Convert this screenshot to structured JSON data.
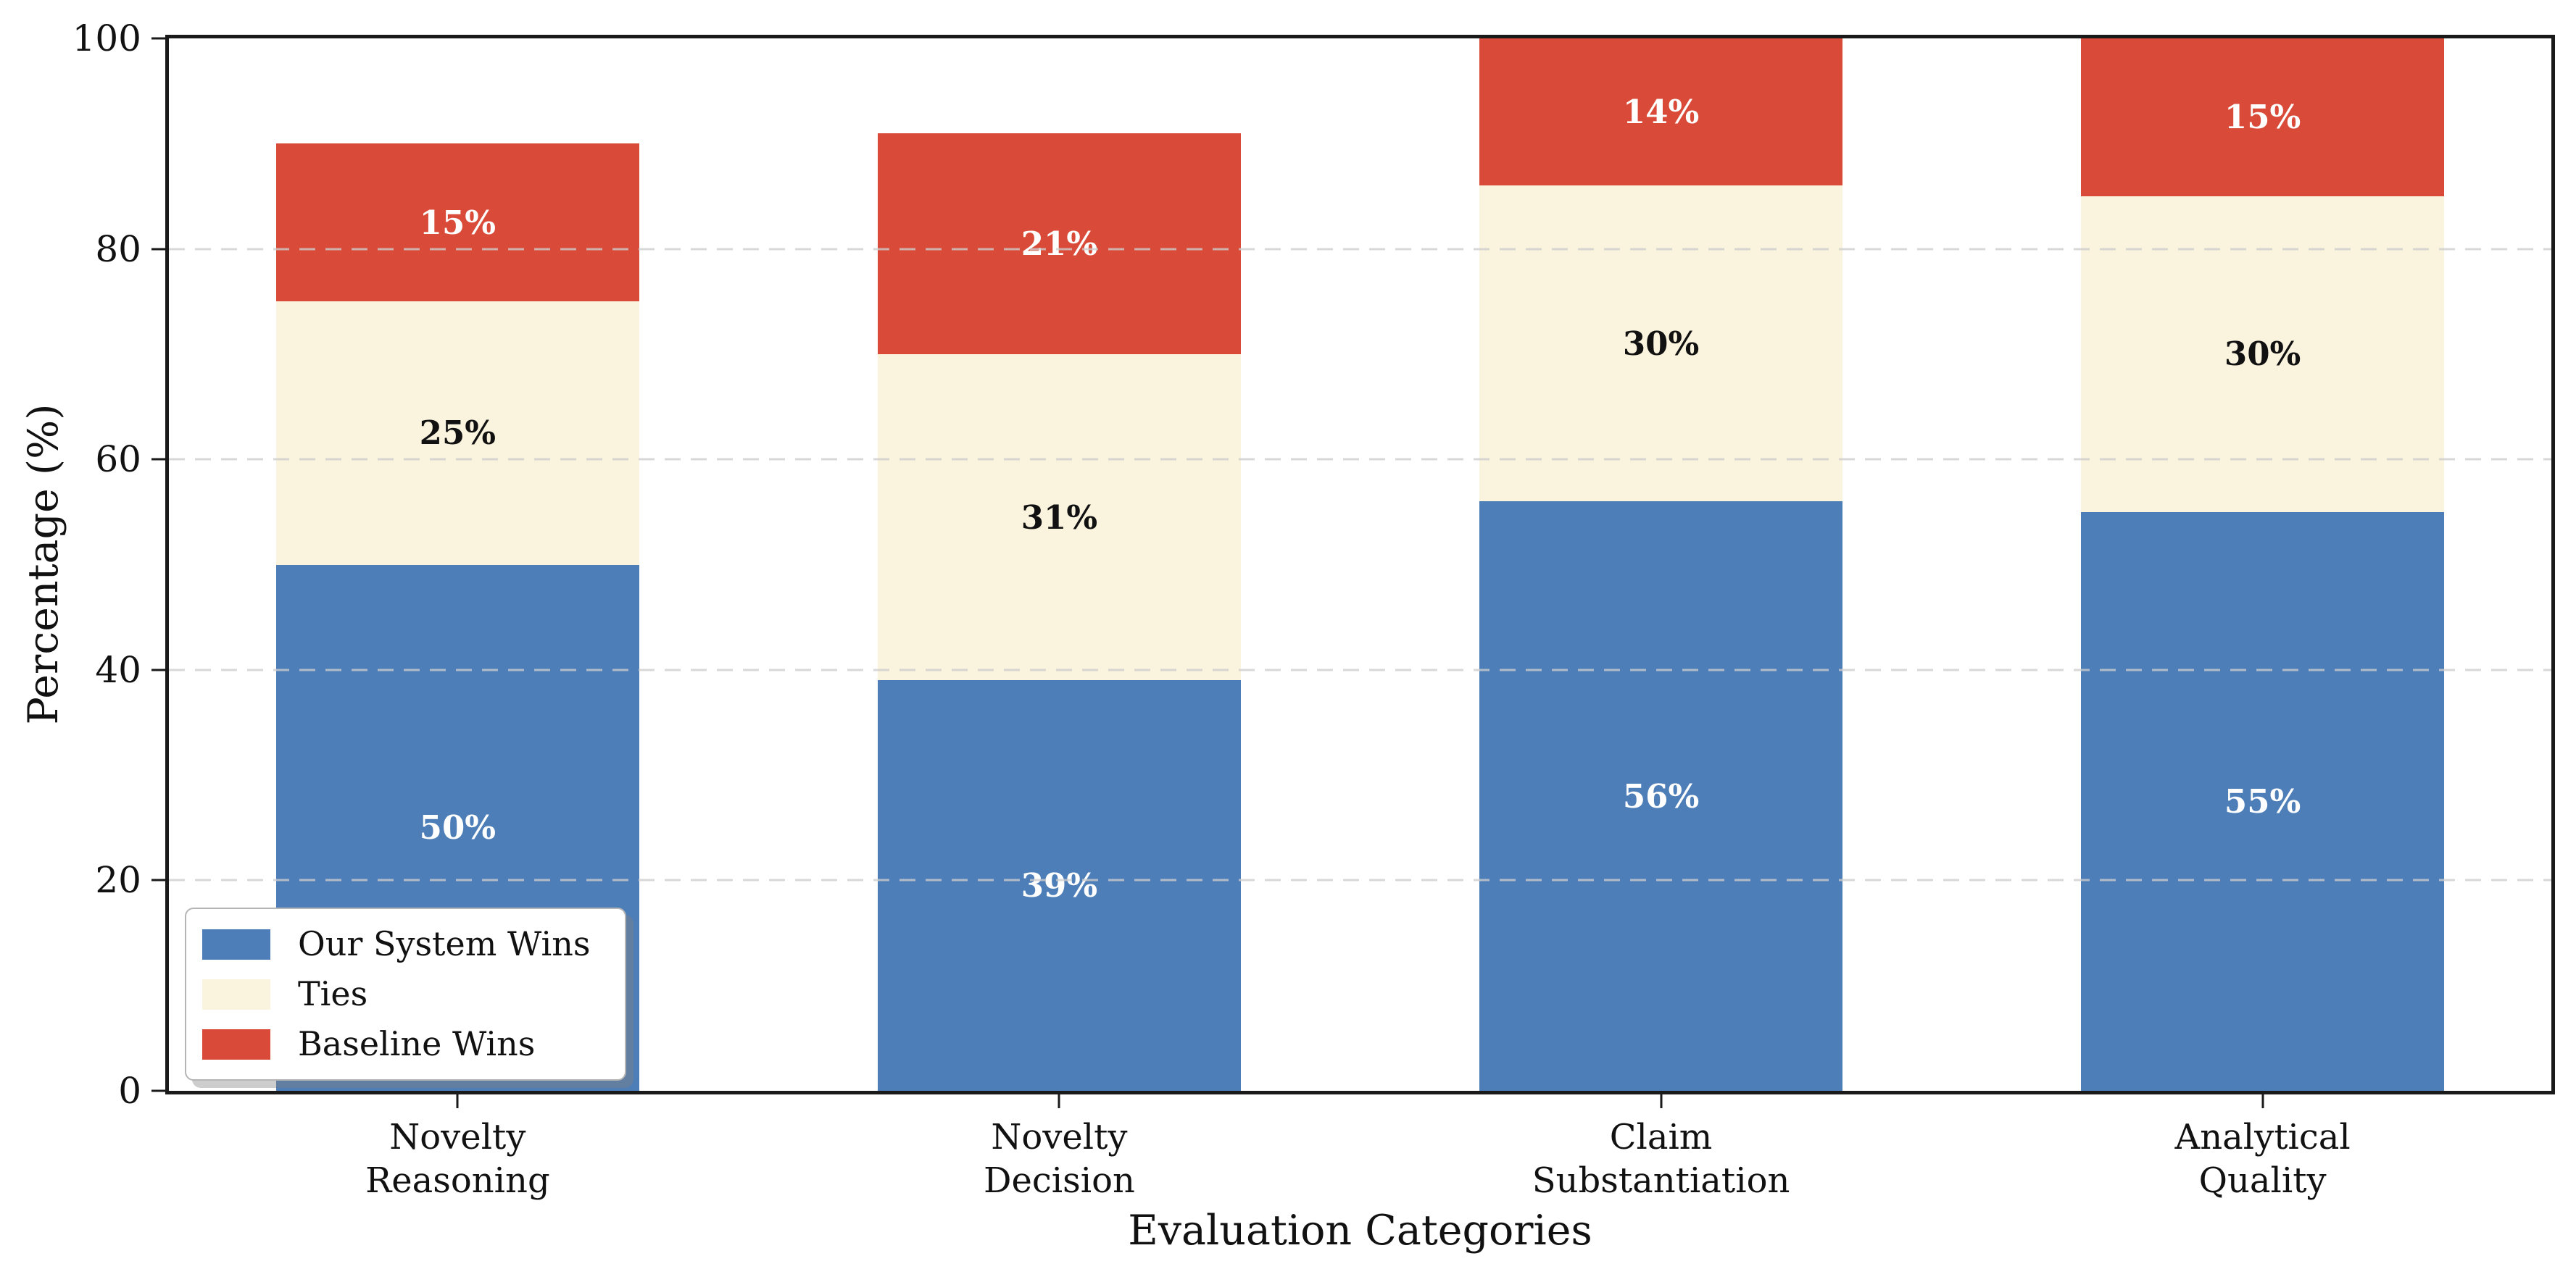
{
  "chart_data": {
    "type": "bar",
    "stacked": true,
    "xlabel": "Evaluation Categories",
    "ylabel": "Percentage (%)",
    "ylim": [
      0,
      100
    ],
    "yticks": [
      0,
      20,
      40,
      60,
      80,
      100
    ],
    "grid": "horizontal-dashed",
    "legend_position": "lower left",
    "categories": [
      [
        "Novelty",
        "Reasoning"
      ],
      [
        "Novelty",
        "Decision"
      ],
      [
        "Claim",
        "Substantiation"
      ],
      [
        "Analytical",
        "Quality"
      ]
    ],
    "series": [
      {
        "name": "Our System Wins",
        "color": "#4d7eb8",
        "label_color": "#ffffff",
        "values": [
          50,
          39,
          56,
          55
        ],
        "labels": [
          "50%",
          "39%",
          "56%",
          "55%"
        ]
      },
      {
        "name": "Ties",
        "color": "#faf3dd",
        "label_color": "#111111",
        "values": [
          25,
          31,
          30,
          30
        ],
        "labels": [
          "25%",
          "31%",
          "30%",
          "30%"
        ]
      },
      {
        "name": "Baseline Wins",
        "color": "#d94b38",
        "label_color": "#ffffff",
        "values": [
          15,
          21,
          14,
          15
        ],
        "labels": [
          "15%",
          "21%",
          "14%",
          "15%"
        ]
      }
    ]
  }
}
